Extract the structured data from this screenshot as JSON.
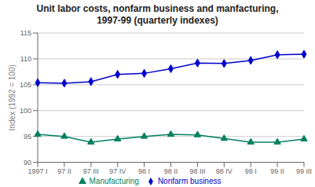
{
  "chart_data": {
    "type": "line",
    "title": "Unit labor costs, nonfarm business and manfacturing,\n1997-99 (quarterly indexes)",
    "ylabel": "Index (1992 = 100)",
    "categories": [
      "1997 I",
      "97 II",
      "97 III",
      "97 IV",
      "98 I",
      "98 II",
      "98 III",
      "98 IV",
      "99 I",
      "99 II",
      "99 III"
    ],
    "series": [
      {
        "name": "Nonfarm business",
        "color": "#0000CC",
        "marker": "diamond",
        "values": [
          105.4,
          105.3,
          105.6,
          107.0,
          107.2,
          108.1,
          109.2,
          109.1,
          109.7,
          110.8,
          110.9
        ]
      },
      {
        "name": "Manufacturing",
        "color": "#008060",
        "marker": "triangle",
        "values": [
          95.4,
          95.0,
          93.9,
          94.5,
          95.0,
          95.4,
          95.3,
          94.6,
          93.9,
          93.9,
          94.5
        ]
      }
    ],
    "ylim": [
      90,
      115
    ],
    "yticks": [
      90,
      95,
      100,
      105,
      110,
      115
    ],
    "grid": true,
    "legend": "bottom"
  }
}
